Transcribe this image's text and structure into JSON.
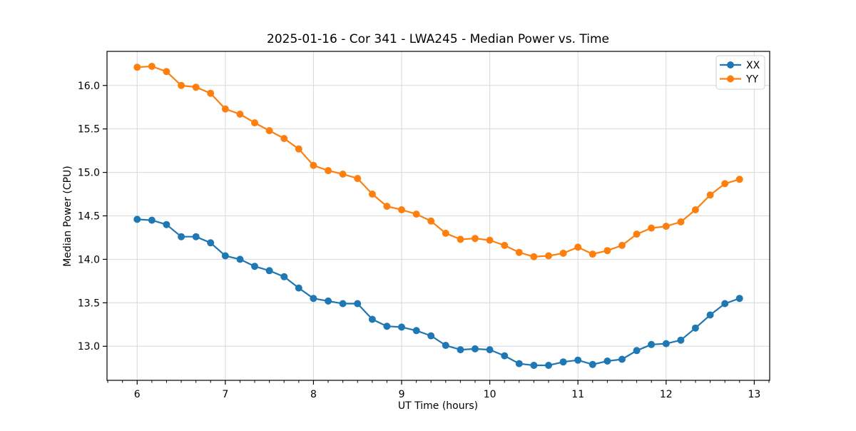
{
  "chart_data": {
    "type": "line",
    "title": "2025-01-16 - Cor 341 - LWA245 - Median Power vs. Time",
    "xlabel": "UT Time (hours)",
    "ylabel": "Median Power (CPU)",
    "xlim": [
      5.658,
      13.175
    ],
    "ylim": [
      12.608,
      16.392
    ],
    "x_major_ticks": [
      6,
      7,
      8,
      9,
      10,
      11,
      12,
      13
    ],
    "x_minor_step": 0.1667,
    "y_ticks": [
      13.0,
      13.5,
      14.0,
      14.5,
      15.0,
      15.5,
      16.0
    ],
    "grid": true,
    "grid_color": "#d8d8d8",
    "legend_position": "upper right",
    "x": [
      6.0,
      6.167,
      6.333,
      6.5,
      6.667,
      6.833,
      7.0,
      7.167,
      7.333,
      7.5,
      7.667,
      7.833,
      8.0,
      8.167,
      8.333,
      8.5,
      8.667,
      8.833,
      9.0,
      9.167,
      9.333,
      9.5,
      9.667,
      9.833,
      10.0,
      10.167,
      10.333,
      10.5,
      10.667,
      10.833,
      11.0,
      11.167,
      11.333,
      11.5,
      11.667,
      11.833,
      12.0,
      12.167,
      12.333,
      12.5,
      12.667,
      12.833
    ],
    "series": [
      {
        "name": "XX",
        "color": "#1f77b4",
        "values": [
          14.46,
          14.45,
          14.4,
          14.26,
          14.26,
          14.19,
          14.04,
          14.0,
          13.92,
          13.87,
          13.8,
          13.67,
          13.55,
          13.52,
          13.49,
          13.49,
          13.31,
          13.23,
          13.22,
          13.18,
          13.12,
          13.01,
          12.96,
          12.97,
          12.96,
          12.89,
          12.8,
          12.78,
          12.78,
          12.82,
          12.84,
          12.79,
          12.83,
          12.85,
          12.95,
          13.02,
          13.03,
          13.07,
          13.21,
          13.36,
          13.49,
          13.55
        ]
      },
      {
        "name": "YY",
        "color": "#ff7f0e",
        "values": [
          16.21,
          16.22,
          16.16,
          16.0,
          15.98,
          15.91,
          15.73,
          15.67,
          15.57,
          15.48,
          15.39,
          15.27,
          15.08,
          15.02,
          14.98,
          14.93,
          14.75,
          14.61,
          14.57,
          14.52,
          14.44,
          14.3,
          14.23,
          14.24,
          14.22,
          14.16,
          14.08,
          14.03,
          14.04,
          14.07,
          14.14,
          14.06,
          14.1,
          14.16,
          14.29,
          14.36,
          14.38,
          14.43,
          14.57,
          14.74,
          14.87,
          14.92
        ]
      }
    ]
  }
}
